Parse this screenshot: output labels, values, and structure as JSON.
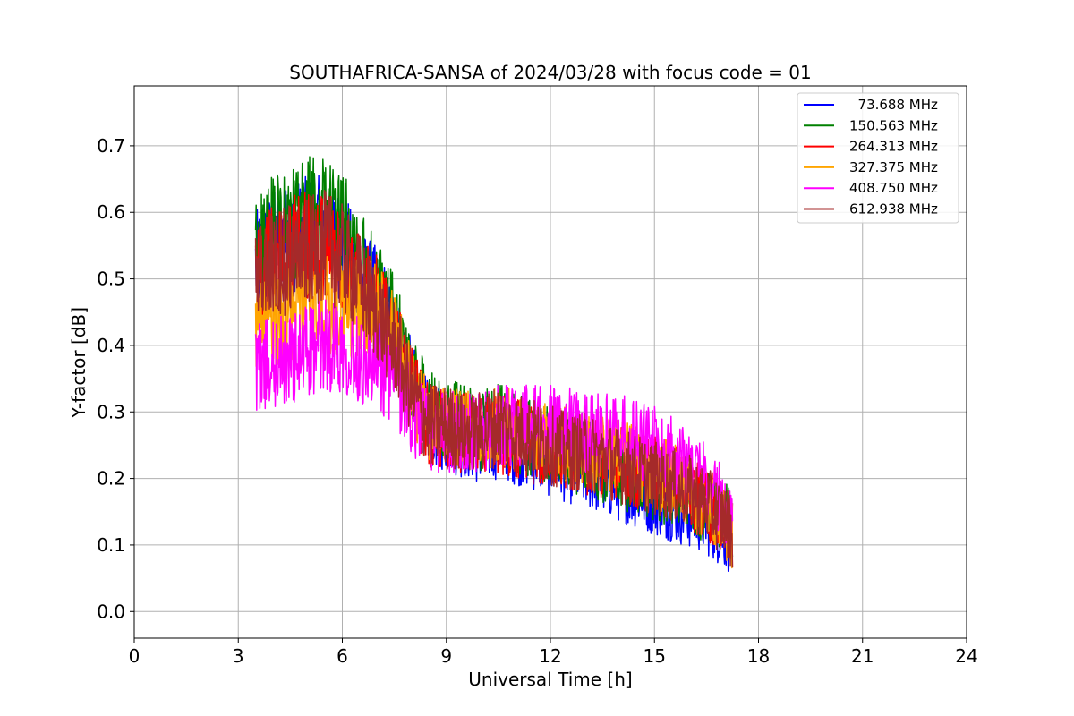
{
  "chart_data": {
    "type": "line",
    "title": "SOUTHAFRICA-SANSA of 2024/03/28 with focus code = 01",
    "xlabel": "Universal Time [h]",
    "ylabel": "Y-factor [dB]",
    "xlim": [
      0,
      24
    ],
    "ylim": [
      -0.04,
      0.79
    ],
    "xticks": [
      0,
      3,
      6,
      9,
      12,
      15,
      18,
      21,
      24
    ],
    "xtick_labels": [
      "0",
      "3",
      "6",
      "9",
      "12",
      "15",
      "18",
      "21",
      "24"
    ],
    "yticks": [
      0.0,
      0.1,
      0.2,
      0.3,
      0.4,
      0.5,
      0.6,
      0.7
    ],
    "ytick_labels": [
      "0.0",
      "0.1",
      "0.2",
      "0.3",
      "0.4",
      "0.5",
      "0.6",
      "0.7"
    ],
    "grid": true,
    "legend_position": "top-right",
    "x": [
      3.5,
      4.0,
      4.5,
      5.0,
      5.5,
      6.0,
      6.5,
      7.0,
      7.5,
      8.0,
      8.5,
      9.0,
      9.5,
      10.0,
      10.5,
      11.0,
      11.5,
      12.0,
      12.5,
      13.0,
      13.5,
      14.0,
      14.5,
      15.0,
      15.5,
      16.0,
      16.5,
      17.0,
      17.25
    ],
    "series": [
      {
        "name": "  73.688 MHz",
        "color": "#0000ff",
        "values": [
          0.52,
          0.55,
          0.56,
          0.57,
          0.57,
          0.55,
          0.5,
          0.47,
          0.42,
          0.34,
          0.28,
          0.27,
          0.26,
          0.25,
          0.26,
          0.25,
          0.24,
          0.23,
          0.22,
          0.21,
          0.2,
          0.19,
          0.18,
          0.17,
          0.16,
          0.15,
          0.14,
          0.12,
          0.11
        ]
      },
      {
        "name": "150.563 MHz",
        "color": "#008000",
        "values": [
          0.54,
          0.57,
          0.58,
          0.6,
          0.6,
          0.58,
          0.52,
          0.48,
          0.43,
          0.35,
          0.3,
          0.29,
          0.28,
          0.27,
          0.28,
          0.27,
          0.26,
          0.25,
          0.24,
          0.23,
          0.22,
          0.21,
          0.2,
          0.19,
          0.18,
          0.17,
          0.16,
          0.15,
          0.13
        ]
      },
      {
        "name": "264.313 MHz",
        "color": "#ff0000",
        "values": [
          0.51,
          0.53,
          0.54,
          0.55,
          0.55,
          0.53,
          0.49,
          0.46,
          0.41,
          0.33,
          0.28,
          0.27,
          0.27,
          0.26,
          0.27,
          0.26,
          0.25,
          0.25,
          0.24,
          0.23,
          0.23,
          0.22,
          0.21,
          0.21,
          0.2,
          0.18,
          0.16,
          0.14,
          0.12
        ]
      },
      {
        "name": "327.375 MHz",
        "color": "#ffa500",
        "values": [
          0.42,
          0.44,
          0.45,
          0.46,
          0.46,
          0.45,
          0.46,
          0.45,
          0.42,
          0.33,
          0.28,
          0.28,
          0.27,
          0.27,
          0.28,
          0.27,
          0.27,
          0.26,
          0.25,
          0.24,
          0.24,
          0.23,
          0.22,
          0.21,
          0.2,
          0.18,
          0.16,
          0.13,
          0.11
        ]
      },
      {
        "name": "408.750 MHz",
        "color": "#ff00ff",
        "values": [
          0.37,
          0.37,
          0.38,
          0.39,
          0.4,
          0.4,
          0.38,
          0.37,
          0.35,
          0.3,
          0.27,
          0.27,
          0.27,
          0.27,
          0.28,
          0.28,
          0.28,
          0.28,
          0.28,
          0.27,
          0.27,
          0.27,
          0.26,
          0.25,
          0.24,
          0.22,
          0.2,
          0.16,
          0.14
        ]
      },
      {
        "name": "612.938 MHz",
        "color": "#a52a2a",
        "values": [
          0.5,
          0.52,
          0.53,
          0.54,
          0.55,
          0.53,
          0.49,
          0.45,
          0.4,
          0.33,
          0.28,
          0.28,
          0.27,
          0.27,
          0.28,
          0.27,
          0.26,
          0.25,
          0.24,
          0.24,
          0.23,
          0.22,
          0.21,
          0.2,
          0.19,
          0.18,
          0.16,
          0.14,
          0.12
        ]
      }
    ]
  }
}
